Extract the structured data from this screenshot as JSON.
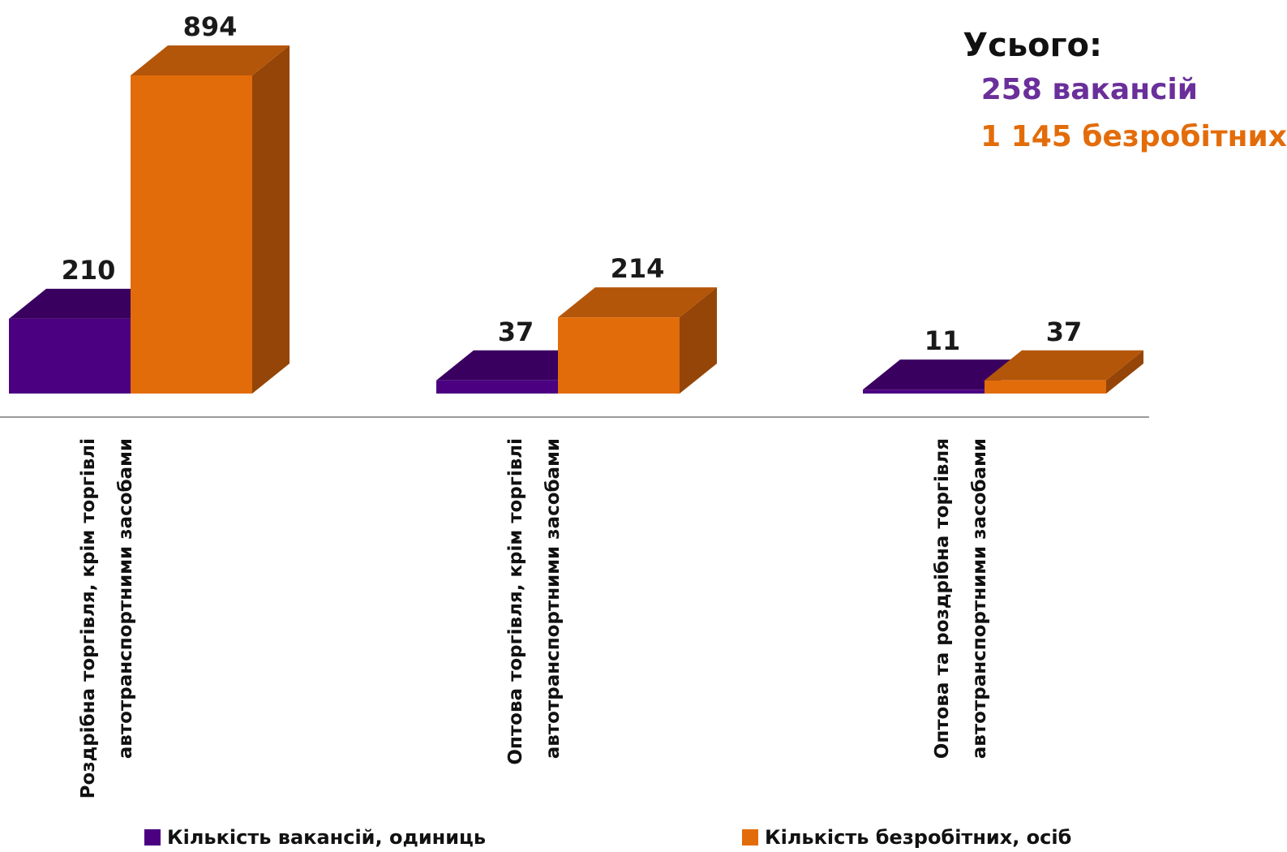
{
  "chart_data": {
    "type": "bar",
    "categories": [
      [
        "Роздрібна торгівля, крім торгівлі",
        "автотранспортними засобами"
      ],
      [
        "Оптова торгівля, крім торгівлі",
        "автотранспортними засобами"
      ],
      [
        "Оптова та роздрібна торгівля",
        "автотранспортними засобами"
      ]
    ],
    "series": [
      {
        "name": "Кількість вакансій, одиниць",
        "values": [
          210,
          37,
          11
        ],
        "color": "#4b0082"
      },
      {
        "name": "Кількість безробітних, осіб",
        "values": [
          894,
          214,
          37
        ],
        "color": "#e36c0a"
      }
    ],
    "ylim": [
      0,
      894
    ],
    "legend": "bottom",
    "grid": false,
    "three_d": true
  },
  "totals": {
    "title": "Усього:",
    "vacancies": "258 вакансій",
    "unemployed": "1 145 безробітних"
  },
  "colors": {
    "vacancy_front": "#4b0082",
    "vacancy_top": "#3a0060",
    "vacancy_side": "#2c0049",
    "unemployed_front": "#e36c0a",
    "unemployed_top": "#b45609",
    "unemployed_side": "#944507",
    "vacancy_text": "#6a2f9a",
    "unemployed_text": "#e36c0a"
  }
}
